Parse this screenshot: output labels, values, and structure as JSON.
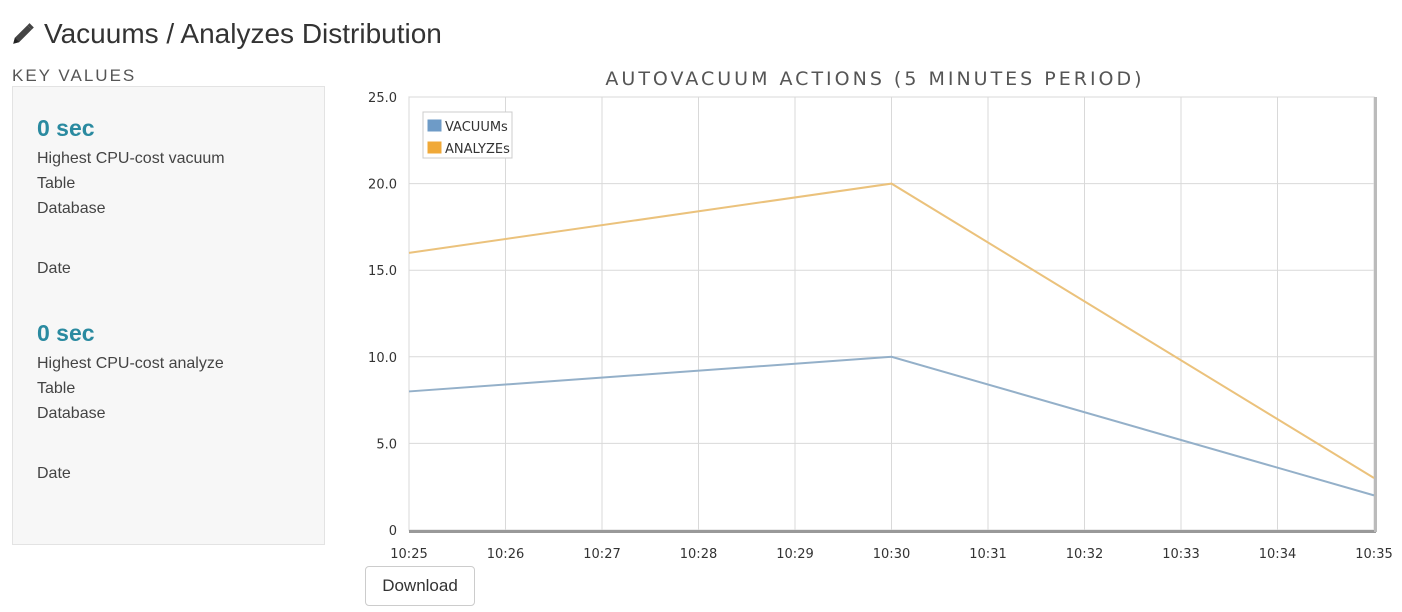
{
  "page": {
    "title": "Vacuums / Analyzes Distribution",
    "title_icon": "pencil-icon"
  },
  "key_values": {
    "heading": "KEY VALUES",
    "vacuum": {
      "value": "0 sec",
      "label": "Highest CPU-cost vacuum",
      "table_label": "Table",
      "database_label": "Database",
      "date_label": "Date"
    },
    "analyze": {
      "value": "0 sec",
      "label": "Highest CPU-cost analyze",
      "table_label": "Table",
      "database_label": "Database",
      "date_label": "Date"
    }
  },
  "download": {
    "label": "Download"
  },
  "colors": {
    "vacuum": "#94b0c9",
    "analyze": "#ebc27c",
    "vacuum_legend": "#6e9bc7",
    "analyze_legend": "#f0a938",
    "value_text": "#2a8aa0"
  },
  "chart_data": {
    "type": "line",
    "title": "AUTOVACUUM ACTIONS (5 MINUTES PERIOD)",
    "xlabel": "",
    "ylabel": "",
    "x": [
      "10:25",
      "10:26",
      "10:27",
      "10:28",
      "10:29",
      "10:30",
      "10:31",
      "10:32",
      "10:33",
      "10:34",
      "10:35"
    ],
    "y_ticks": [
      "0",
      "5.0",
      "10.0",
      "15.0",
      "20.0",
      "25.0"
    ],
    "ylim": [
      0,
      25
    ],
    "grid": true,
    "legend": "top-left",
    "series": [
      {
        "name": "VACUUMs",
        "points": [
          [
            0,
            8
          ],
          [
            5,
            10
          ],
          [
            10,
            2
          ]
        ]
      },
      {
        "name": "ANALYZEs",
        "points": [
          [
            0,
            16
          ],
          [
            5,
            20
          ],
          [
            10,
            3
          ]
        ]
      }
    ]
  }
}
